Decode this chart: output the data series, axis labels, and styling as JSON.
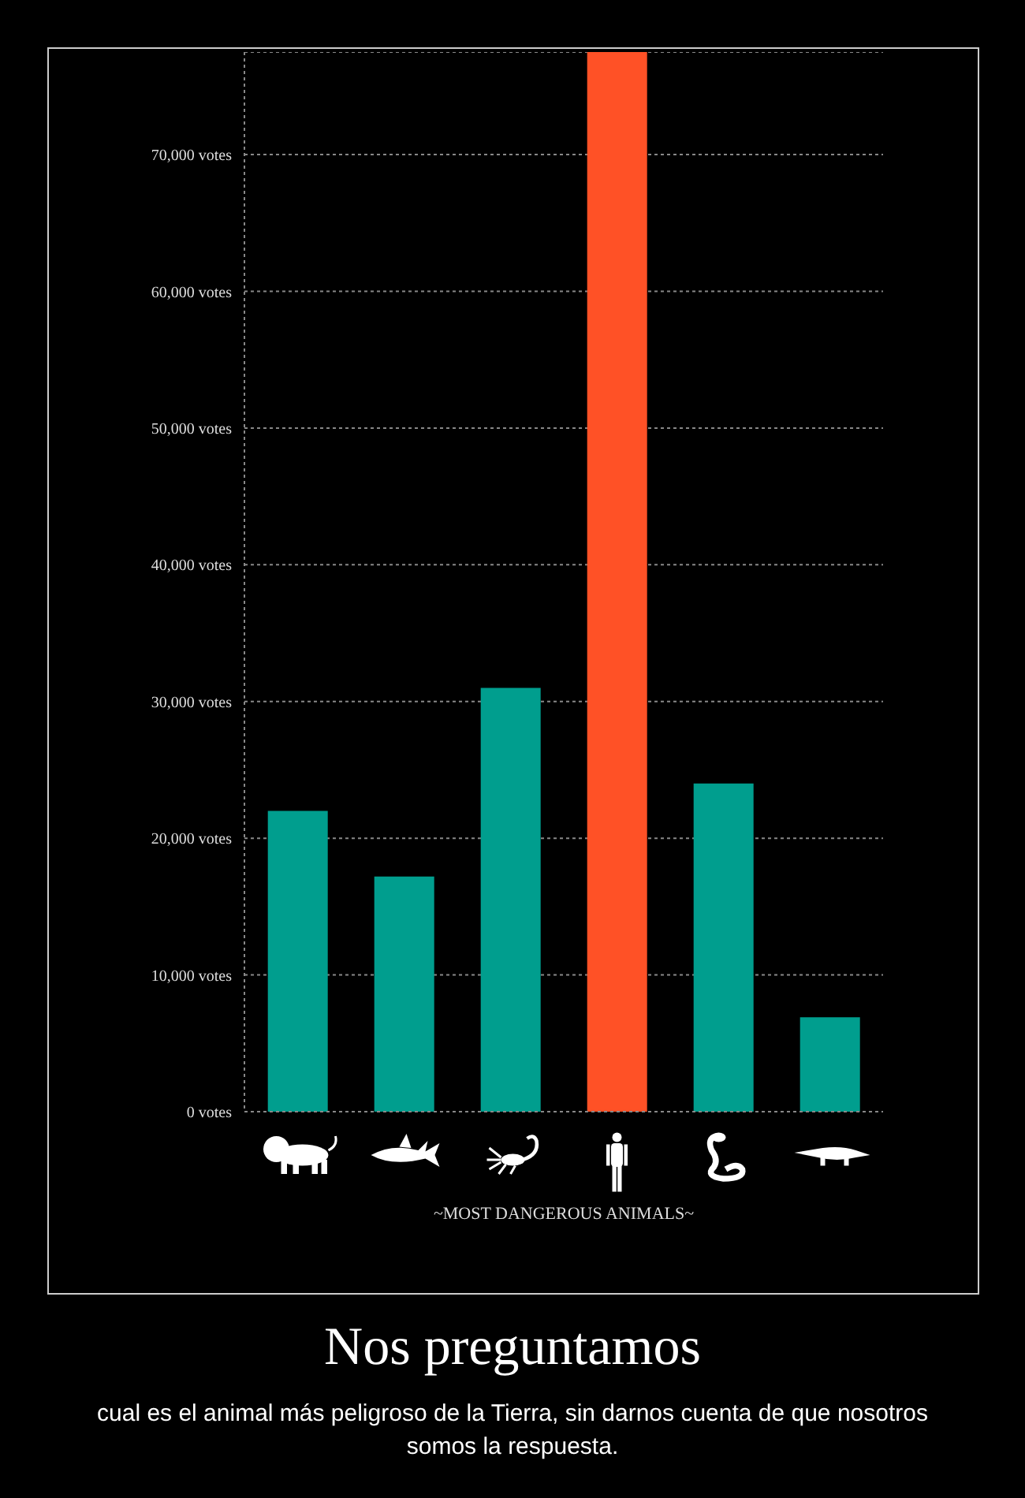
{
  "chart_data": {
    "type": "bar",
    "title": "Nos preguntamos",
    "subtitle": "cual es el animal más peligroso de la Tierra, sin darnos cuenta de que nosotros somos la respuesta.",
    "xlabel": "~MOST DANGEROUS ANIMALS~",
    "categories": [
      null,
      null,
      null,
      null,
      null,
      null
    ],
    "values": [
      22000,
      17200,
      31000,
      77500,
      24000,
      6900
    ],
    "colors": [
      "#009e8e",
      "#009e8e",
      "#009e8e",
      "#ff5126",
      "#009e8e",
      "#009e8e"
    ],
    "ylim": [
      0,
      77500
    ],
    "yticks": [
      {
        "value": 0,
        "label": "0 votes"
      },
      {
        "value": 10000,
        "label": "10,000 votes"
      },
      {
        "value": 20000,
        "label": "20,000 votes"
      },
      {
        "value": 30000,
        "label": "30,000 votes"
      },
      {
        "value": 40000,
        "label": "40,000 votes"
      },
      {
        "value": 50000,
        "label": "50,000 votes"
      },
      {
        "value": 60000,
        "label": "60,000 votes"
      },
      {
        "value": 70000,
        "label": "70,000 votes"
      }
    ],
    "grid": "y"
  }
}
